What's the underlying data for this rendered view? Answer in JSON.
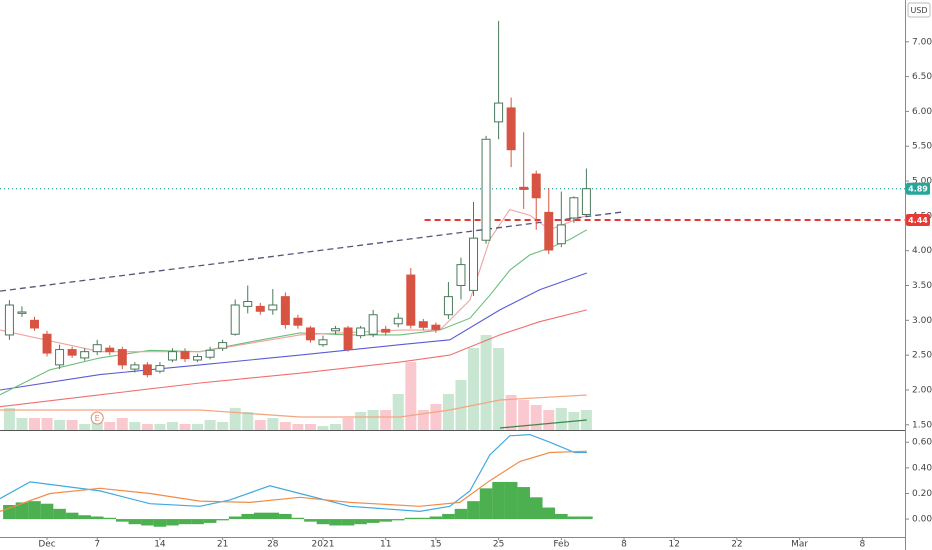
{
  "chart_data": [
    {
      "type": "candlestick",
      "currency": "USD",
      "xlim": [
        -3.75,
        68.4
      ],
      "ylim": [
        1.425,
        7.6
      ],
      "yticks": [
        {
          "value": 1.5,
          "label": "1.50"
        },
        {
          "value": 2,
          "label": "2.00"
        },
        {
          "value": 2.5,
          "label": "2.50"
        },
        {
          "value": 3,
          "label": "3.00"
        },
        {
          "value": 3.5,
          "label": "3.50"
        },
        {
          "value": 4,
          "label": "4.00"
        },
        {
          "value": 4.5,
          "label": "4.50"
        },
        {
          "value": 5,
          "label": "5.00"
        },
        {
          "value": 5.5,
          "label": "5.50"
        },
        {
          "value": 6,
          "label": "6.00"
        },
        {
          "value": 6.5,
          "label": "6.50"
        },
        {
          "value": 7,
          "label": "7.00"
        }
      ],
      "up_color": "#4a7a5c",
      "down_color": "#d75442",
      "up_volume_color": "#c8e6d2",
      "down_volume_color": "#f9c9cf",
      "x": [
        -3,
        -2,
        -1,
        0,
        1,
        2,
        3,
        4,
        5,
        6,
        7,
        8,
        9,
        10,
        11,
        12,
        13,
        14,
        15,
        16,
        17,
        18,
        19,
        20,
        21,
        22,
        23,
        24,
        25,
        26,
        27,
        28,
        29,
        30,
        31,
        32,
        33,
        34,
        35,
        36,
        37,
        38,
        39,
        40,
        41,
        42,
        43
      ],
      "open": [
        2.79,
        3.1,
        3.0,
        2.8,
        2.36,
        2.58,
        2.46,
        2.55,
        2.6,
        2.58,
        2.3,
        2.36,
        2.27,
        2.43,
        2.55,
        2.43,
        2.47,
        2.6,
        2.8,
        3.2,
        3.2,
        3.15,
        3.34,
        3.03,
        2.89,
        2.65,
        2.85,
        2.89,
        2.78,
        2.8,
        2.87,
        2.95,
        3.65,
        2.98,
        2.93,
        3.08,
        3.5,
        3.43,
        4.15,
        5.85,
        6.05,
        4.91,
        5.1,
        4.55,
        4.1,
        4.47,
        4.52
      ],
      "high": [
        3.29,
        3.2,
        3.05,
        2.85,
        2.65,
        2.62,
        2.6,
        2.72,
        2.64,
        2.62,
        2.4,
        2.4,
        2.4,
        2.6,
        2.6,
        2.52,
        2.62,
        2.72,
        3.3,
        3.5,
        3.25,
        3.45,
        3.4,
        3.08,
        2.92,
        2.78,
        2.92,
        2.92,
        2.92,
        3.15,
        2.92,
        3.1,
        3.75,
        3.02,
        2.97,
        3.55,
        3.9,
        4.7,
        5.65,
        7.3,
        6.2,
        5.7,
        5.15,
        4.9,
        4.85,
        4.78,
        5.18
      ],
      "low": [
        2.72,
        3.05,
        2.85,
        2.48,
        2.3,
        2.46,
        2.42,
        2.5,
        2.5,
        2.3,
        2.25,
        2.18,
        2.24,
        2.4,
        2.4,
        2.4,
        2.44,
        2.56,
        2.78,
        3.1,
        3.08,
        3.08,
        2.88,
        2.88,
        2.68,
        2.62,
        2.8,
        2.55,
        2.74,
        2.76,
        2.78,
        2.9,
        2.88,
        2.86,
        2.82,
        3.02,
        3.3,
        3.35,
        4.1,
        5.6,
        5.2,
        4.6,
        4.3,
        3.95,
        4.05,
        4.4,
        4.5
      ],
      "close": [
        3.22,
        3.12,
        2.89,
        2.53,
        2.58,
        2.5,
        2.55,
        2.65,
        2.55,
        2.36,
        2.36,
        2.22,
        2.35,
        2.55,
        2.45,
        2.48,
        2.57,
        2.68,
        3.22,
        3.27,
        3.13,
        3.22,
        2.94,
        2.93,
        2.72,
        2.72,
        2.88,
        2.58,
        2.89,
        3.08,
        2.83,
        3.03,
        2.93,
        2.9,
        2.87,
        3.34,
        3.8,
        4.18,
        5.6,
        6.12,
        5.45,
        4.88,
        4.76,
        4.01,
        4.37,
        4.76,
        4.89
      ],
      "volume": [
        22,
        12,
        12,
        12,
        10,
        10,
        6,
        8,
        8,
        12,
        8,
        6,
        6,
        8,
        6,
        6,
        10,
        8,
        22,
        18,
        10,
        12,
        8,
        6,
        6,
        4,
        6,
        12,
        18,
        20,
        20,
        36,
        68,
        20,
        26,
        36,
        50,
        82,
        95,
        82,
        35,
        30,
        25,
        20,
        22,
        18,
        20
      ],
      "volume_lim": [
        0,
        430
      ],
      "lines": [
        {
          "color": "#5b5bd6",
          "x": [
            -3.75,
            4.22,
            12.19,
            20.16,
            28.13,
            32.11,
            36.1,
            39.28,
            43.03
          ],
          "values": [
            2.0,
            2.22,
            2.36,
            2.5,
            2.65,
            2.72,
            3.15,
            3.44,
            3.68
          ]
        },
        {
          "color": "#f07070",
          "x": [
            -3.75,
            4.22,
            12.19,
            20.16,
            28.13,
            32.11,
            36.1,
            39.28,
            43.03
          ],
          "values": [
            1.76,
            1.93,
            2.1,
            2.24,
            2.4,
            2.5,
            2.79,
            2.98,
            3.15
          ]
        },
        {
          "color": "#6cbf7a",
          "x": [
            -3.75,
            0.24,
            4.22,
            8.21,
            12.19,
            16.18,
            20.16,
            24.14,
            28.13,
            31.31,
            33.71,
            35.3,
            36.89,
            38.49,
            40.08,
            41.67,
            43.03
          ],
          "values": [
            1.93,
            2.29,
            2.46,
            2.57,
            2.55,
            2.69,
            2.82,
            2.79,
            2.79,
            2.86,
            3.03,
            3.36,
            3.72,
            3.94,
            4.04,
            4.16,
            4.3
          ]
        },
        {
          "color": "#f3a0a0",
          "x": [
            -3.75,
            4.22,
            12.19,
            20.16,
            28.13,
            31.31,
            33.71,
            35.3,
            36.89,
            38.49,
            40.08,
            43.03
          ],
          "values": [
            2.86,
            2.55,
            2.55,
            2.79,
            2.86,
            2.86,
            3.29,
            4.16,
            4.59,
            4.51,
            4.3,
            4.51
          ]
        }
      ],
      "volume_lines": [
        {
          "color": "#f4a582",
          "x": [
            -3.75,
            4.22,
            12.19,
            20.16,
            28.13,
            32.11,
            36.1,
            43.03
          ],
          "values": [
            20,
            20,
            20,
            13,
            13,
            20,
            30,
            35
          ]
        },
        {
          "color": "#3a8a4a",
          "x": [
            36.1,
            43.03
          ],
          "values": [
            2,
            10
          ]
        }
      ],
      "trendline": {
        "color": "#55557a",
        "x": [
          -3.75,
          46.05
        ],
        "values": [
          3.42,
          4.56
        ]
      },
      "price_lines": [
        {
          "value": 4.89,
          "color": "#26a69a",
          "style": "dotted",
          "x_start": -3.75
        },
        {
          "value": 4.44,
          "color": "#e53935",
          "style": "dashed",
          "x_start": 30.1
        }
      ],
      "events": [
        {
          "label": "E",
          "x": 4
        }
      ]
    },
    {
      "type": "macd",
      "xlim": [
        -3.75,
        68.4
      ],
      "ylim": [
        -0.14,
        0.68
      ],
      "yticks": [
        {
          "value": 0,
          "label": "0.00"
        },
        {
          "value": 0.2,
          "label": "0.20"
        },
        {
          "value": 0.4,
          "label": "0.40"
        },
        {
          "value": 0.6,
          "label": "0.60"
        }
      ],
      "xticks": [
        {
          "value": 0,
          "label": "Dec"
        },
        {
          "value": 4,
          "label": "7"
        },
        {
          "value": 9,
          "label": "14"
        },
        {
          "value": 14,
          "label": "21"
        },
        {
          "value": 18,
          "label": "28"
        },
        {
          "value": 22,
          "label": "2021"
        },
        {
          "value": 27,
          "label": "11"
        },
        {
          "value": 31,
          "label": "15"
        },
        {
          "value": 36,
          "label": "25"
        },
        {
          "value": 41,
          "label": "Feb"
        },
        {
          "value": 46,
          "label": "8"
        },
        {
          "value": 50,
          "label": "12"
        },
        {
          "value": 55,
          "label": "22"
        },
        {
          "value": 60,
          "label": "Mar"
        },
        {
          "value": 65,
          "label": "8"
        }
      ],
      "color": "#4caf50",
      "x": [
        -3,
        -2,
        -1,
        0,
        1,
        2,
        3,
        4,
        5,
        6,
        7,
        8,
        9,
        10,
        11,
        12,
        13,
        14,
        15,
        16,
        17,
        18,
        19,
        20,
        21,
        22,
        23,
        24,
        25,
        26,
        27,
        28,
        29,
        30,
        31,
        32,
        33,
        34,
        35,
        36,
        37,
        38,
        39,
        40,
        41,
        42,
        43
      ],
      "values": [
        0.11,
        0.13,
        0.14,
        0.12,
        0.08,
        0.05,
        0.03,
        0.02,
        0.01,
        -0.02,
        -0.04,
        -0.05,
        -0.06,
        -0.05,
        -0.04,
        -0.04,
        -0.03,
        -0.01,
        0.02,
        0.04,
        0.05,
        0.05,
        0.04,
        0.01,
        -0.02,
        -0.04,
        -0.05,
        -0.05,
        -0.04,
        -0.03,
        -0.02,
        -0.01,
        0.01,
        0.01,
        0.02,
        0.04,
        0.08,
        0.14,
        0.24,
        0.29,
        0.29,
        0.25,
        0.17,
        0.09,
        0.04,
        0.02,
        0.02
      ],
      "lines": [
        {
          "color": "#3fa9e0",
          "x": [
            -3.75,
            -1.35,
            4.22,
            8.21,
            12.19,
            14.58,
            17.77,
            20.16,
            24.14,
            29.72,
            32.11,
            33.71,
            35.3,
            36.89,
            38.49,
            40.08,
            42.07,
            43.03
          ],
          "values": [
            0.16,
            0.29,
            0.22,
            0.12,
            0.1,
            0.15,
            0.26,
            0.2,
            0.1,
            0.06,
            0.1,
            0.22,
            0.5,
            0.65,
            0.66,
            0.6,
            0.52,
            0.52
          ]
        },
        {
          "color": "#f08c4a",
          "x": [
            -3.75,
            0.24,
            4.22,
            8.21,
            12.19,
            16.18,
            20.16,
            24.14,
            29.72,
            32.91,
            35.3,
            37.69,
            40.08,
            43.03
          ],
          "values": [
            0.06,
            0.2,
            0.24,
            0.2,
            0.14,
            0.13,
            0.17,
            0.13,
            0.1,
            0.13,
            0.3,
            0.45,
            0.52,
            0.53
          ]
        }
      ]
    }
  ]
}
